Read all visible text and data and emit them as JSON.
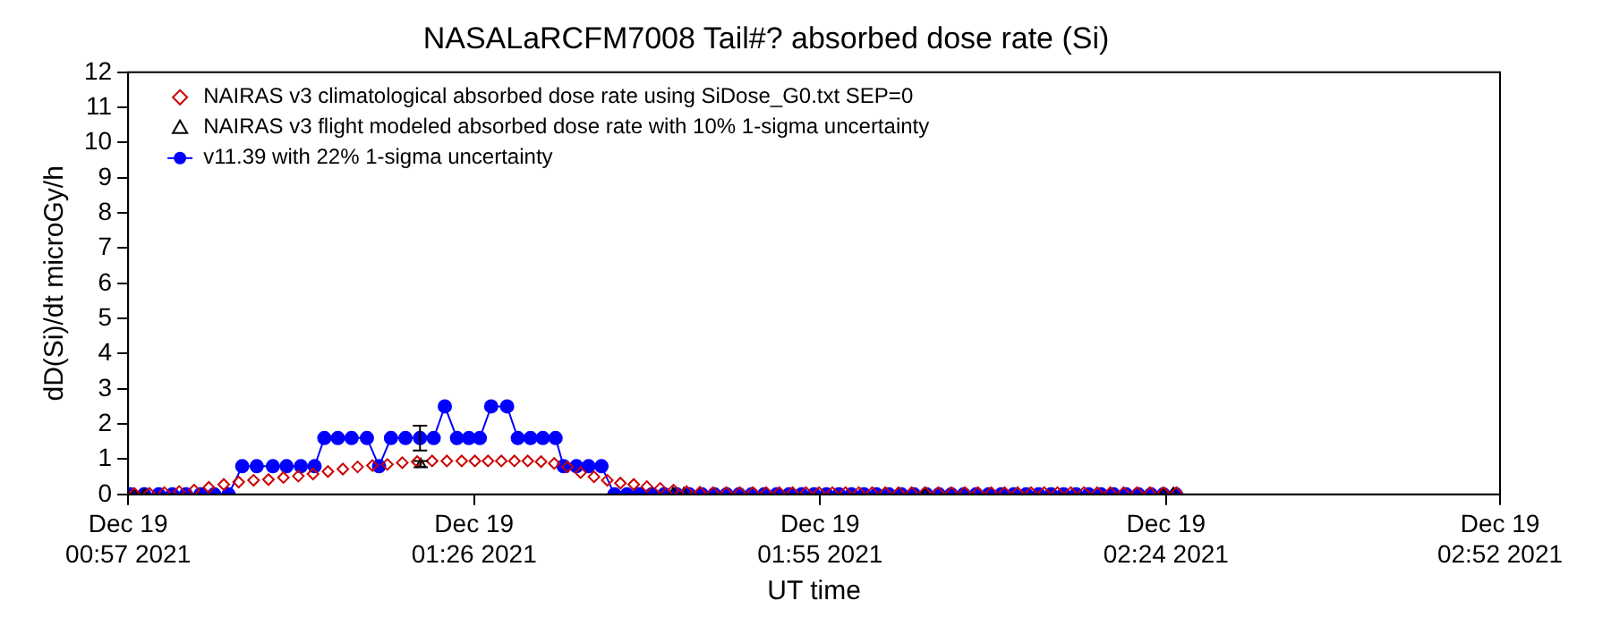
{
  "chart_data": {
    "type": "line",
    "title": "NASALaRCFM7008 Tail#? absorbed dose rate (Si)",
    "xlabel": "UT time",
    "ylabel": "dD(Si)/dt microGy/h",
    "xlim": [
      "2021-12-19T00:57",
      "2021-12-19T02:52"
    ],
    "xticks": [
      {
        "value": "2021-12-19T00:57",
        "label": "Dec 19\n00:57 2021"
      },
      {
        "value": "2021-12-19T01:26",
        "label": "Dec 19\n01:26 2021"
      },
      {
        "value": "2021-12-19T01:55",
        "label": "Dec 19\n01:55 2021"
      },
      {
        "value": "2021-12-19T02:24",
        "label": "Dec 19\n02:24 2021"
      },
      {
        "value": "2021-12-19T02:52",
        "label": "Dec 19\n02:52 2021"
      }
    ],
    "ylim": [
      0,
      12
    ],
    "yticks": [
      0,
      1,
      2,
      3,
      4,
      5,
      6,
      7,
      8,
      9,
      10,
      11,
      12
    ],
    "grid": false,
    "legend": "top left",
    "series": [
      {
        "name": "NAIRAS v3 climatological absorbed dose rate using SiDose_G0.txt SEP=0",
        "type": "scatter",
        "marker": "diamond",
        "color": "#cc0000",
        "x": [
          "2021-12-19T00:57:32",
          "2021-12-19T00:58:47",
          "2021-12-19T01:00:02",
          "2021-12-19T01:01:17",
          "2021-12-19T01:02:32",
          "2021-12-19T01:03:46",
          "2021-12-19T01:05:01",
          "2021-12-19T01:06:16",
          "2021-12-19T01:07:31",
          "2021-12-19T01:08:46",
          "2021-12-19T01:10:01",
          "2021-12-19T01:11:16",
          "2021-12-19T01:12:30",
          "2021-12-19T01:13:45",
          "2021-12-19T01:15:00",
          "2021-12-19T01:16:14",
          "2021-12-19T01:17:29",
          "2021-12-19T01:18:44",
          "2021-12-19T01:19:59",
          "2021-12-19T01:21:14",
          "2021-12-19T01:22:29",
          "2021-12-19T01:23:43",
          "2021-12-19T01:24:58",
          "2021-12-19T01:26:04",
          "2021-12-19T01:27:10",
          "2021-12-19T01:28:17",
          "2021-12-19T01:29:23",
          "2021-12-19T01:30:30",
          "2021-12-19T01:31:37",
          "2021-12-19T01:32:43",
          "2021-12-19T01:33:50",
          "2021-12-19T01:34:56",
          "2021-12-19T01:36:03",
          "2021-12-19T01:37:10",
          "2021-12-19T01:38:16",
          "2021-12-19T01:39:23",
          "2021-12-19T01:40:29",
          "2021-12-19T01:41:36",
          "2021-12-19T01:42:43",
          "2021-12-19T01:43:49",
          "2021-12-19T01:44:56",
          "2021-12-19T01:46:02",
          "2021-12-19T01:47:09",
          "2021-12-19T01:48:16",
          "2021-12-19T01:49:22",
          "2021-12-19T01:50:29",
          "2021-12-19T01:51:35",
          "2021-12-19T01:52:42",
          "2021-12-19T01:53:49",
          "2021-12-19T01:54:55",
          "2021-12-19T01:56:02",
          "2021-12-19T01:57:08",
          "2021-12-19T01:58:15",
          "2021-12-19T01:59:22",
          "2021-12-19T02:00:28",
          "2021-12-19T02:01:35",
          "2021-12-19T02:02:41",
          "2021-12-19T02:03:48",
          "2021-12-19T02:04:55",
          "2021-12-19T02:06:01",
          "2021-12-19T02:07:08",
          "2021-12-19T02:08:14",
          "2021-12-19T02:09:21",
          "2021-12-19T02:10:28",
          "2021-12-19T02:11:34",
          "2021-12-19T02:12:41",
          "2021-12-19T02:13:47",
          "2021-12-19T02:14:54",
          "2021-12-19T02:16:01",
          "2021-12-19T02:17:07",
          "2021-12-19T02:18:14",
          "2021-12-19T02:19:20",
          "2021-12-19T02:20:27",
          "2021-12-19T02:21:34",
          "2021-12-19T02:22:40",
          "2021-12-19T02:23:47",
          "2021-12-19T02:24:53"
        ],
        "values": [
          0.02,
          0.03,
          0.05,
          0.08,
          0.12,
          0.2,
          0.28,
          0.35,
          0.4,
          0.42,
          0.48,
          0.52,
          0.58,
          0.65,
          0.72,
          0.78,
          0.82,
          0.85,
          0.9,
          0.93,
          0.95,
          0.95,
          0.95,
          0.95,
          0.95,
          0.95,
          0.95,
          0.95,
          0.93,
          0.88,
          0.78,
          0.62,
          0.5,
          0.4,
          0.32,
          0.28,
          0.22,
          0.17,
          0.12,
          0.08,
          0.06,
          0.05,
          0.05,
          0.05,
          0.05,
          0.05,
          0.05,
          0.05,
          0.05,
          0.05,
          0.05,
          0.05,
          0.05,
          0.05,
          0.05,
          0.05,
          0.05,
          0.05,
          0.05,
          0.05,
          0.05,
          0.05,
          0.05,
          0.05,
          0.05,
          0.05,
          0.05,
          0.05,
          0.05,
          0.05,
          0.05,
          0.05,
          0.05,
          0.05,
          0.05,
          0.05,
          0.05
        ]
      },
      {
        "name": "NAIRAS v3 flight modeled absorbed dose rate with 10% 1-sigma uncertainty",
        "type": "scatter",
        "marker": "triangle",
        "color": "#000000",
        "x": [
          "2021-12-19T00:57:32",
          "2021-12-19T00:58:21",
          "2021-12-19T01:21:32",
          "2021-12-19T01:42:41",
          "2021-12-19T01:43:35",
          "2021-12-19T02:03:48",
          "2021-12-19T02:23:47",
          "2021-12-19T02:24:37"
        ],
        "values": [
          0,
          0,
          0.86,
          0.03,
          0.03,
          0.03,
          0.03,
          0.03
        ],
        "errors": [
          null,
          null,
          0.09,
          null,
          null,
          null,
          null,
          null
        ]
      },
      {
        "name": "v11.39 with 22% 1-sigma uncertainty",
        "type": "line",
        "marker": "circle",
        "color": "#0000ff",
        "x": [
          "2021-12-19T00:57:12",
          "2021-12-19T00:58:21",
          "2021-12-19T00:59:34",
          "2021-12-19T01:00:43",
          "2021-12-19T01:01:51",
          "2021-12-19T01:03:04",
          "2021-12-19T01:04:13",
          "2021-12-19T01:05:25",
          "2021-12-19T01:06:34",
          "2021-12-19T01:07:47",
          "2021-12-19T01:09:08",
          "2021-12-19T01:10:17",
          "2021-12-19T01:11:29",
          "2021-12-19T01:12:38",
          "2021-12-19T01:13:27",
          "2021-12-19T01:14:35",
          "2021-12-19T01:15:44",
          "2021-12-19T01:17:01",
          "2021-12-19T01:18:02",
          "2021-12-19T01:19:02",
          "2021-12-19T01:20:15",
          "2021-12-19T01:21:28",
          "2021-12-19T01:22:37",
          "2021-12-19T01:23:33",
          "2021-12-19T01:24:34",
          "2021-12-19T01:25:34",
          "2021-12-19T01:26:29",
          "2021-12-19T01:27:26",
          "2021-12-19T01:28:46",
          "2021-12-19T01:29:40",
          "2021-12-19T01:30:44",
          "2021-12-19T01:31:46",
          "2021-12-19T01:32:50",
          "2021-12-19T01:33:30",
          "2021-12-19T01:34:35",
          "2021-12-19T01:35:36",
          "2021-12-19T01:36:41",
          "2021-12-19T01:37:46",
          "2021-12-19T01:38:49",
          "2021-12-19T01:39:51",
          "2021-12-19T01:40:54",
          "2021-12-19T01:41:56",
          "2021-12-19T01:42:59",
          "2021-12-19T01:44:02",
          "2021-12-19T01:45:05",
          "2021-12-19T01:46:08",
          "2021-12-19T01:47:10",
          "2021-12-19T01:48:13",
          "2021-12-19T01:49:16",
          "2021-12-19T01:50:19",
          "2021-12-19T01:51:22",
          "2021-12-19T01:52:24",
          "2021-12-19T01:53:27",
          "2021-12-19T01:54:30",
          "2021-12-19T01:55:32",
          "2021-12-19T01:56:35",
          "2021-12-19T01:57:38",
          "2021-12-19T01:58:41",
          "2021-12-19T01:59:44",
          "2021-12-19T02:00:46",
          "2021-12-19T02:01:49",
          "2021-12-19T02:02:52",
          "2021-12-19T02:03:55",
          "2021-12-19T02:04:58",
          "2021-12-19T02:06:00",
          "2021-12-19T02:07:03",
          "2021-12-19T02:08:05",
          "2021-12-19T02:09:08",
          "2021-12-19T02:10:11",
          "2021-12-19T02:11:14",
          "2021-12-19T02:12:17",
          "2021-12-19T02:13:19",
          "2021-12-19T02:14:22",
          "2021-12-19T02:15:25",
          "2021-12-19T02:16:28",
          "2021-12-19T02:17:31",
          "2021-12-19T02:18:33",
          "2021-12-19T02:19:36",
          "2021-12-19T02:20:39",
          "2021-12-19T02:21:41",
          "2021-12-19T02:22:44",
          "2021-12-19T02:23:47",
          "2021-12-19T02:24:50"
        ],
        "values": [
          0,
          0,
          0,
          0,
          0,
          0,
          0,
          0,
          0.8,
          0.8,
          0.8,
          0.8,
          0.8,
          0.8,
          1.6,
          1.6,
          1.6,
          1.6,
          0.8,
          1.6,
          1.6,
          1.6,
          1.6,
          2.5,
          1.6,
          1.6,
          1.6,
          2.5,
          2.5,
          1.6,
          1.6,
          1.6,
          1.6,
          0.8,
          0.8,
          0.8,
          0.8,
          0,
          0,
          0,
          0,
          0,
          0,
          0,
          0,
          0,
          0,
          0,
          0,
          0,
          0,
          0,
          0,
          0,
          0,
          0,
          0,
          0,
          0,
          0,
          0,
          0,
          0,
          0,
          0,
          0,
          0,
          0,
          0,
          0,
          0,
          0,
          0,
          0,
          0,
          0,
          0,
          0,
          0,
          0,
          0,
          0,
          0
        ],
        "errors": [
          null,
          null,
          null,
          null,
          null,
          null,
          null,
          null,
          null,
          null,
          null,
          null,
          null,
          null,
          null,
          null,
          null,
          null,
          null,
          null,
          null,
          0.35,
          null,
          null,
          null,
          null,
          null,
          null,
          null,
          null,
          null,
          null,
          null,
          null,
          null,
          null,
          null,
          null,
          null,
          null,
          null,
          null,
          null,
          null,
          null,
          null,
          null,
          null,
          null,
          null,
          null,
          null,
          null,
          null,
          null,
          null,
          null,
          null,
          null,
          null,
          null,
          null,
          null,
          null,
          null,
          null,
          null,
          null,
          null,
          null,
          null,
          null,
          null,
          null,
          null,
          null,
          null,
          null,
          null,
          null,
          null,
          null,
          null
        ]
      }
    ]
  }
}
